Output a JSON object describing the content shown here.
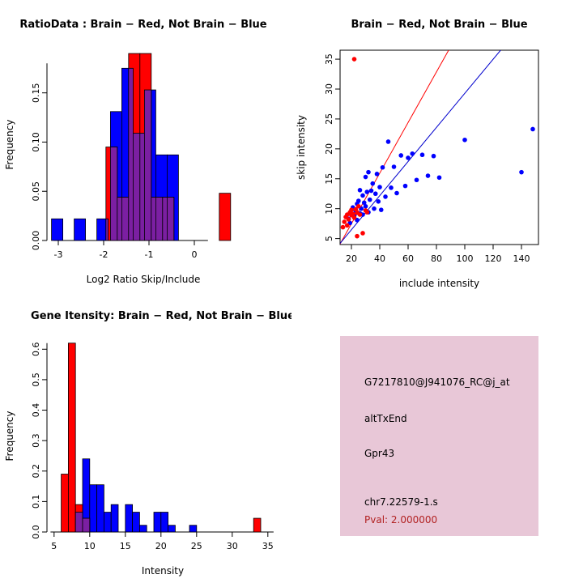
{
  "page": {
    "background": "#ffffff"
  },
  "colors": {
    "red": "#ff0000",
    "blue": "#0000ff",
    "overlap_purple": "#7b1fa2"
  },
  "chart_data": [
    {
      "type": "bar",
      "subtype": "overlaid-histograms",
      "title": "RatioData : Brain − Red, Not Brain − Blue",
      "xlabel": "Log2 Ratio Skip/Include",
      "ylabel": "Frequency",
      "xlim": [
        -3.25,
        1.0
      ],
      "ylim": [
        0,
        0.195
      ],
      "xticks": [
        -3,
        -2,
        -1,
        0
      ],
      "yticks": [
        0,
        0.05,
        0.1,
        0.15
      ],
      "ytick_labels": [
        "0.00",
        "0.05",
        "0.10",
        "0.15"
      ],
      "x_axis_span": [
        -3.1,
        0.3
      ],
      "y_axis_span": [
        0,
        0.18
      ],
      "overlap_color": "#7b1fa2",
      "series": [
        {
          "name": "Not Brain",
          "color": "#0000ff",
          "bars": [
            {
              "x": -3.15,
              "w": 0.25,
              "h": 0.022
            },
            {
              "x": -2.65,
              "w": 0.25,
              "h": 0.022
            },
            {
              "x": -2.15,
              "w": 0.25,
              "h": 0.022
            },
            {
              "x": -1.85,
              "w": 0.25,
              "h": 0.131
            },
            {
              "x": -1.6,
              "w": 0.25,
              "h": 0.175
            },
            {
              "x": -1.35,
              "w": 0.25,
              "h": 0.109
            },
            {
              "x": -1.1,
              "w": 0.25,
              "h": 0.153
            },
            {
              "x": -0.85,
              "w": 0.25,
              "h": 0.087
            },
            {
              "x": -0.6,
              "w": 0.25,
              "h": 0.087
            }
          ]
        },
        {
          "name": "Brain",
          "color": "#ff0000",
          "bars": [
            {
              "x": -1.95,
              "w": 0.25,
              "h": 0.095
            },
            {
              "x": -1.7,
              "w": 0.25,
              "h": 0.044
            },
            {
              "x": -1.45,
              "w": 0.25,
              "h": 0.19
            },
            {
              "x": -1.2,
              "w": 0.25,
              "h": 0.19
            },
            {
              "x": -0.95,
              "w": 0.25,
              "h": 0.044
            },
            {
              "x": -0.7,
              "w": 0.25,
              "h": 0.044
            },
            {
              "x": 0.55,
              "w": 0.25,
              "h": 0.048
            }
          ]
        }
      ]
    },
    {
      "type": "scatter",
      "title": "Brain − Red, Not Brain − Blue",
      "xlabel": "include intensity",
      "ylabel": "skip intensity",
      "xlim": [
        12,
        152
      ],
      "ylim": [
        4,
        36.5
      ],
      "xticks": [
        20,
        40,
        60,
        80,
        100,
        120,
        140
      ],
      "yticks": [
        5,
        10,
        15,
        20,
        25,
        30,
        35
      ],
      "ytick_labels": [
        "5",
        "10",
        "15",
        "20",
        "25",
        "30",
        "35"
      ],
      "box": true,
      "series": [
        {
          "name": "Not Brain",
          "color": "#0000ff",
          "points": [
            [
              18,
              8.3
            ],
            [
              19,
              7.6
            ],
            [
              20,
              9.0
            ],
            [
              21,
              10.2
            ],
            [
              22,
              8.8
            ],
            [
              23,
              9.6
            ],
            [
              24,
              10.8
            ],
            [
              24,
              8.1
            ],
            [
              25,
              11.3
            ],
            [
              26,
              9.2
            ],
            [
              26,
              13.1
            ],
            [
              27,
              10.0
            ],
            [
              28,
              12.2
            ],
            [
              28,
              9.0
            ],
            [
              29,
              11.0
            ],
            [
              30,
              15.3
            ],
            [
              30,
              10.4
            ],
            [
              31,
              12.8
            ],
            [
              32,
              16.1
            ],
            [
              32,
              9.4
            ],
            [
              33,
              11.5
            ],
            [
              34,
              13.0
            ],
            [
              35,
              14.2
            ],
            [
              36,
              10.0
            ],
            [
              37,
              12.5
            ],
            [
              38,
              15.8
            ],
            [
              39,
              11.2
            ],
            [
              40,
              13.6
            ],
            [
              41,
              9.8
            ],
            [
              42,
              16.9
            ],
            [
              44,
              12.0
            ],
            [
              46,
              21.2
            ],
            [
              48,
              13.5
            ],
            [
              50,
              17.0
            ],
            [
              52,
              12.6
            ],
            [
              55,
              18.9
            ],
            [
              58,
              13.8
            ],
            [
              60,
              18.5
            ],
            [
              63,
              19.2
            ],
            [
              66,
              14.8
            ],
            [
              70,
              19.0
            ],
            [
              74,
              15.5
            ],
            [
              78,
              18.8
            ],
            [
              82,
              15.2
            ],
            [
              100,
              21.5
            ],
            [
              140,
              16.1
            ],
            [
              148,
              23.3
            ]
          ]
        },
        {
          "name": "Brain",
          "color": "#ff0000",
          "points": [
            [
              14,
              6.9
            ],
            [
              15,
              7.8
            ],
            [
              16,
              8.6
            ],
            [
              17,
              7.2
            ],
            [
              17,
              9.0
            ],
            [
              18,
              8.2
            ],
            [
              19,
              9.4
            ],
            [
              20,
              8.9
            ],
            [
              20,
              9.8
            ],
            [
              21,
              9.1
            ],
            [
              22,
              8.5
            ],
            [
              22,
              35.0
            ],
            [
              23,
              9.9
            ],
            [
              24,
              9.3
            ],
            [
              24,
              5.4
            ],
            [
              25,
              10.4
            ],
            [
              26,
              9.0
            ],
            [
              28,
              5.9
            ],
            [
              30,
              9.7
            ],
            [
              31,
              9.4
            ]
          ]
        }
      ],
      "lines": [
        {
          "name": "brain-fit-line",
          "color": "#ff0000",
          "x1": 12,
          "y1": 4.1,
          "x2": 88.6,
          "y2": 36.5
        },
        {
          "name": "notbrain-fit-line",
          "color": "#0000cd",
          "x1": 12,
          "y1": 4.2,
          "x2": 125.3,
          "y2": 36.5
        }
      ]
    },
    {
      "type": "bar",
      "subtype": "overlaid-histograms",
      "title": "Gene Itensity: Brain − Red, Not Brain − Blue",
      "xlabel": "Intensity",
      "ylabel": "Frequency",
      "xlim": [
        4.0,
        36.5
      ],
      "ylim": [
        0,
        0.63
      ],
      "xticks": [
        5,
        10,
        15,
        20,
        25,
        30,
        35
      ],
      "yticks": [
        0,
        0.1,
        0.2,
        0.3,
        0.4,
        0.5,
        0.6
      ],
      "ytick_labels": [
        "0.0",
        "0.1",
        "0.2",
        "0.3",
        "0.4",
        "0.5",
        "0.6"
      ],
      "x_axis_span": [
        4.5,
        35.8
      ],
      "y_axis_span": [
        0,
        0.62
      ],
      "overlap_color": "#7b1fa2",
      "series": [
        {
          "name": "Not Brain",
          "color": "#0000ff",
          "bars": [
            {
              "x": 8,
              "w": 1,
              "h": 0.065
            },
            {
              "x": 9,
              "w": 1,
              "h": 0.24
            },
            {
              "x": 10,
              "w": 1,
              "h": 0.155
            },
            {
              "x": 11,
              "w": 1,
              "h": 0.155
            },
            {
              "x": 12,
              "w": 1,
              "h": 0.065
            },
            {
              "x": 13,
              "w": 1,
              "h": 0.09
            },
            {
              "x": 15,
              "w": 1,
              "h": 0.09
            },
            {
              "x": 16,
              "w": 1,
              "h": 0.065
            },
            {
              "x": 17,
              "w": 1,
              "h": 0.022
            },
            {
              "x": 19,
              "w": 1,
              "h": 0.065
            },
            {
              "x": 20,
              "w": 1,
              "h": 0.065
            },
            {
              "x": 21,
              "w": 1,
              "h": 0.022
            },
            {
              "x": 24,
              "w": 1,
              "h": 0.022
            }
          ]
        },
        {
          "name": "Brain",
          "color": "#ff0000",
          "bars": [
            {
              "x": 6,
              "w": 1,
              "h": 0.19
            },
            {
              "x": 7,
              "w": 1,
              "h": 0.62
            },
            {
              "x": 8,
              "w": 1,
              "h": 0.09
            },
            {
              "x": 9,
              "w": 1,
              "h": 0.045
            },
            {
              "x": 33,
              "w": 1,
              "h": 0.045
            }
          ]
        }
      ]
    }
  ],
  "info_panel": {
    "background": "#e8c7d7",
    "lines": [
      {
        "text": "G7217810@J941076_RC@j_at",
        "color": "#000000"
      },
      {
        "text": "altTxEnd",
        "color": "#000000"
      },
      {
        "text": "Gpr43",
        "color": "#000000"
      },
      {
        "text": "chr7.22579-1.s",
        "color": "#000000"
      },
      {
        "text": "Pval: 2.000000",
        "color": "#b22222"
      }
    ]
  }
}
